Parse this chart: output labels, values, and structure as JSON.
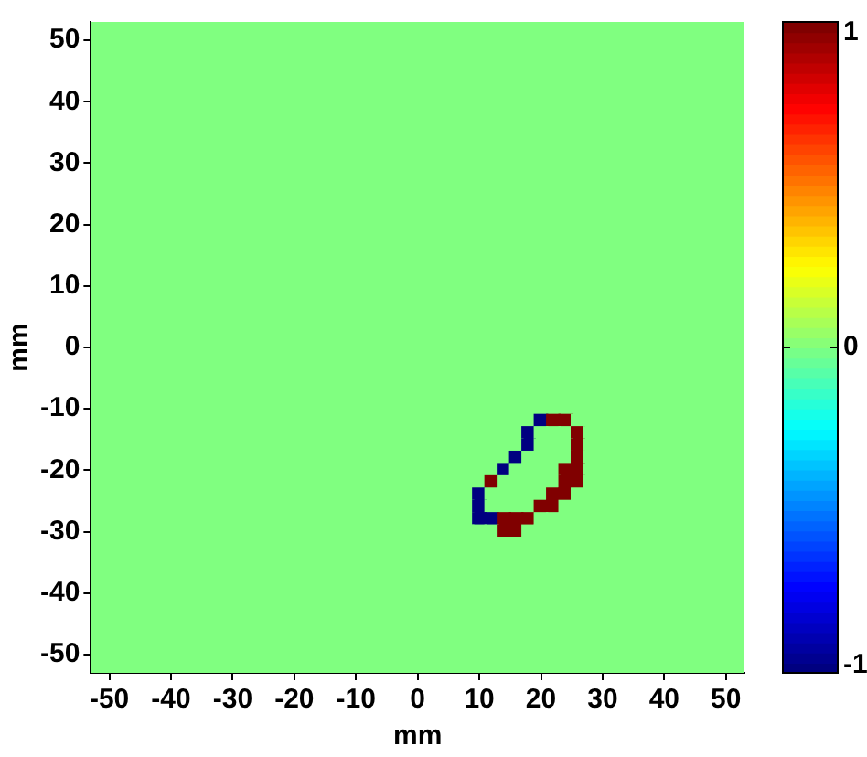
{
  "chart_data": {
    "type": "heatmap",
    "xlabel": "mm",
    "ylabel": "mm",
    "xlim": [
      -53,
      53
    ],
    "ylim": [
      -53,
      53
    ],
    "xticks": [
      -50,
      -40,
      -30,
      -20,
      -10,
      0,
      10,
      20,
      30,
      40,
      50
    ],
    "yticks": [
      -50,
      -40,
      -30,
      -20,
      -10,
      0,
      10,
      20,
      30,
      40,
      50
    ],
    "clim": [
      -1,
      1
    ],
    "cticks": [
      -1,
      0,
      1
    ],
    "cells": [
      [
        0,
        0,
        0,
        0,
        0,
        0,
        0,
        0,
        0,
        0,
        0,
        0,
        0,
        0,
        0,
        0,
        0,
        0,
        0,
        0,
        0,
        0,
        0,
        0,
        0,
        0,
        0,
        0,
        0,
        0,
        0,
        0,
        0,
        0,
        0,
        0,
        0,
        0,
        0,
        0,
        0,
        0,
        0,
        0,
        0,
        0,
        0,
        0,
        0,
        0,
        0,
        0,
        0
      ],
      [
        0,
        0,
        0,
        0,
        0,
        0,
        0,
        0,
        0,
        0,
        0,
        0,
        0,
        0,
        0,
        0,
        0,
        0,
        0,
        0,
        0,
        0,
        0,
        0,
        0,
        0,
        0,
        0,
        0,
        0,
        0,
        0,
        0,
        0,
        0,
        0,
        0,
        0,
        0,
        0,
        0,
        0,
        0,
        0,
        0,
        0,
        0,
        0,
        0,
        0,
        0,
        0,
        0
      ],
      [
        0,
        0,
        0,
        0,
        0,
        0,
        0,
        0,
        0,
        0,
        0,
        0,
        0,
        0,
        0,
        0,
        0,
        0,
        0,
        0,
        0,
        0,
        0,
        0,
        0,
        0,
        0,
        0,
        0,
        0,
        0,
        0,
        0,
        0,
        0,
        0,
        0,
        0,
        0,
        0,
        0,
        0,
        0,
        0,
        0,
        0,
        0,
        0,
        0,
        0,
        0,
        0,
        0
      ],
      [
        0,
        0,
        0,
        0,
        0,
        0,
        0,
        0,
        0,
        0,
        0,
        0,
        0,
        0,
        0,
        0,
        0,
        0,
        0,
        0,
        0,
        0,
        0,
        0,
        0,
        0,
        0,
        0,
        0,
        0,
        0,
        0,
        0,
        0,
        0,
        0,
        0,
        0,
        0,
        0,
        0,
        0,
        0,
        0,
        0,
        0,
        0,
        0,
        0,
        0,
        0,
        0,
        0
      ],
      [
        0,
        0,
        0,
        0,
        0,
        0,
        0,
        0,
        0,
        0,
        0,
        0,
        0,
        0,
        0,
        0,
        0,
        0,
        0,
        0,
        0,
        0,
        0,
        0,
        0,
        0,
        0,
        0,
        0,
        0,
        0,
        0,
        0,
        0,
        0,
        0,
        0,
        0,
        0,
        0,
        0,
        0,
        0,
        0,
        0,
        0,
        0,
        0,
        0,
        0,
        0,
        0,
        0
      ],
      [
        0,
        0,
        0,
        0,
        0,
        0,
        0,
        0,
        0,
        0,
        0,
        0,
        0,
        0,
        0,
        0,
        0,
        0,
        0,
        0,
        0,
        0,
        0,
        0,
        0,
        0,
        0,
        0,
        0,
        0,
        0,
        0,
        0,
        0,
        0,
        0,
        0,
        0,
        0,
        0,
        0,
        0,
        0,
        0,
        0,
        0,
        0,
        0,
        0,
        0,
        0,
        0,
        0
      ],
      [
        0,
        0,
        0,
        0,
        0,
        0,
        0,
        0,
        0,
        0,
        0,
        0,
        0,
        0,
        0,
        0,
        0,
        0,
        0,
        0,
        0,
        0,
        0,
        0,
        0,
        0,
        0,
        0,
        0,
        0,
        0,
        0,
        0,
        0,
        0,
        0,
        0,
        0,
        0,
        0,
        0,
        0,
        0,
        0,
        0,
        0,
        0,
        0,
        0,
        0,
        0,
        0,
        0
      ],
      [
        0,
        0,
        0,
        0,
        0,
        0,
        0,
        0,
        0,
        0,
        0,
        0,
        0,
        0,
        0,
        0,
        0,
        0,
        0,
        0,
        0,
        0,
        0,
        0,
        0,
        0,
        0,
        0,
        0,
        0,
        0,
        0,
        0,
        0,
        0,
        0,
        0,
        0,
        0,
        0,
        0,
        0,
        0,
        0,
        0,
        0,
        0,
        0,
        0,
        0,
        0,
        0,
        0
      ],
      [
        0,
        0,
        0,
        0,
        0,
        0,
        0,
        0,
        0,
        0,
        0,
        0,
        0,
        0,
        0,
        0,
        0,
        0,
        0,
        0,
        0,
        0,
        0,
        0,
        0,
        0,
        0,
        0,
        0,
        0,
        0,
        0,
        0,
        0,
        0,
        0,
        0,
        0,
        0,
        0,
        0,
        0,
        0,
        0,
        0,
        0,
        0,
        0,
        0,
        0,
        0,
        0,
        0
      ],
      [
        0,
        0,
        0,
        0,
        0,
        0,
        0,
        0,
        0,
        0,
        0,
        0,
        0,
        0,
        0,
        0,
        0,
        0,
        0,
        0,
        0,
        0,
        0,
        0,
        0,
        0,
        0,
        0,
        0,
        0,
        0,
        0,
        0,
        0,
        0,
        0,
        0,
        0,
        0,
        0,
        0,
        0,
        0,
        0,
        0,
        0,
        0,
        0,
        0,
        0,
        0,
        0,
        0
      ],
      [
        0,
        0,
        0,
        0,
        0,
        0,
        0,
        0,
        0,
        0,
        0,
        0,
        0,
        0,
        0,
        0,
        0,
        0,
        0,
        0,
        0,
        0,
        0,
        0,
        0,
        0,
        0,
        0,
        0,
        0,
        0,
        0,
        0,
        0,
        0,
        0,
        0,
        0,
        0,
        0,
        0,
        0,
        0,
        0,
        0,
        0,
        0,
        0,
        0,
        0,
        0,
        0,
        0
      ],
      [
        0,
        0,
        0,
        0,
        0,
        0,
        0,
        0,
        0,
        0,
        0,
        0,
        0,
        0,
        0,
        0,
        0,
        0,
        0,
        0,
        0,
        0,
        0,
        0,
        0,
        0,
        0,
        0,
        0,
        0,
        0,
        0,
        0,
        0,
        0,
        0,
        0,
        0,
        0,
        0,
        0,
        0,
        0,
        0,
        0,
        0,
        0,
        0,
        0,
        0,
        0,
        0,
        0
      ],
      [
        0,
        0,
        0,
        0,
        0,
        0,
        0,
        0,
        0,
        0,
        0,
        0,
        0,
        0,
        0,
        0,
        0,
        0,
        0,
        0,
        0,
        0,
        0,
        0,
        0,
        0,
        0,
        0,
        0,
        0,
        0,
        0,
        0,
        0,
        0,
        0,
        0,
        0,
        0,
        0,
        0,
        0,
        0,
        0,
        0,
        0,
        0,
        0,
        0,
        0,
        0,
        0,
        0
      ],
      [
        0,
        0,
        0,
        0,
        0,
        0,
        0,
        0,
        0,
        0,
        0,
        0,
        0,
        0,
        0,
        0,
        0,
        0,
        0,
        0,
        0,
        0,
        0,
        0,
        0,
        0,
        0,
        0,
        0,
        0,
        0,
        0,
        0,
        0,
        0,
        0,
        0,
        0,
        0,
        0,
        0,
        0,
        0,
        0,
        0,
        0,
        0,
        0,
        0,
        0,
        0,
        0,
        0
      ],
      [
        0,
        0,
        0,
        0,
        0,
        0,
        0,
        0,
        0,
        0,
        0,
        0,
        0,
        0,
        0,
        0,
        0,
        0,
        0,
        0,
        0,
        0,
        0,
        0,
        0,
        0,
        0,
        0,
        0,
        0,
        0,
        0,
        0,
        0,
        0,
        0,
        0,
        0,
        0,
        0,
        0,
        0,
        0,
        0,
        0,
        0,
        0,
        0,
        0,
        0,
        0,
        0,
        0
      ],
      [
        0,
        0,
        0,
        0,
        0,
        0,
        0,
        0,
        0,
        0,
        0,
        0,
        0,
        0,
        0,
        0,
        0,
        0,
        0,
        0,
        0,
        0,
        0,
        0,
        0,
        0,
        0,
        0,
        0,
        0,
        0,
        0,
        0,
        0,
        0,
        0,
        0,
        0,
        0,
        0,
        0,
        0,
        0,
        0,
        0,
        0,
        0,
        0,
        0,
        0,
        0,
        0,
        0
      ],
      [
        0,
        0,
        0,
        0,
        0,
        0,
        0,
        0,
        0,
        0,
        0,
        0,
        0,
        0,
        0,
        0,
        0,
        0,
        0,
        0,
        0,
        0,
        0,
        0,
        0,
        0,
        0,
        0,
        0,
        0,
        0,
        0,
        0,
        0,
        0,
        0,
        0,
        0,
        0,
        0,
        0,
        0,
        0,
        0,
        0,
        0,
        0,
        0,
        0,
        0,
        0,
        0,
        0
      ],
      [
        0,
        0,
        0,
        0,
        0,
        0,
        0,
        0,
        0,
        0,
        0,
        0,
        0,
        0,
        0,
        0,
        0,
        0,
        0,
        0,
        0,
        0,
        0,
        0,
        0,
        0,
        0,
        0,
        0,
        0,
        0,
        0,
        0,
        0,
        0,
        0,
        0,
        0,
        0,
        0,
        0,
        0,
        0,
        0,
        0,
        0,
        0,
        0,
        0,
        0,
        0,
        0,
        0
      ],
      [
        0,
        0,
        0,
        0,
        0,
        0,
        0,
        0,
        0,
        0,
        0,
        0,
        0,
        0,
        0,
        0,
        0,
        0,
        0,
        0,
        0,
        0,
        0,
        0,
        0,
        0,
        0,
        0,
        0,
        0,
        0,
        0,
        0,
        0,
        0,
        0,
        0,
        0,
        0,
        0,
        0,
        0,
        0,
        0,
        0,
        0,
        0,
        0,
        0,
        0,
        0,
        0,
        0
      ],
      [
        0,
        0,
        0,
        0,
        0,
        0,
        0,
        0,
        0,
        0,
        0,
        0,
        0,
        0,
        0,
        0,
        0,
        0,
        0,
        0,
        0,
        0,
        0,
        0,
        0,
        0,
        0,
        0,
        0,
        0,
        0,
        0,
        0,
        0,
        0,
        0,
        0,
        0,
        0,
        0,
        0,
        0,
        0,
        0,
        0,
        0,
        0,
        0,
        0,
        0,
        0,
        0,
        0
      ],
      [
        0,
        0,
        0,
        0,
        0,
        0,
        0,
        0,
        0,
        0,
        0,
        0,
        0,
        0,
        0,
        0,
        0,
        0,
        0,
        0,
        0,
        0,
        0,
        0,
        0,
        0,
        0,
        0,
        0,
        0,
        0,
        0,
        0,
        0,
        0,
        0,
        0,
        0,
        0,
        0,
        0,
        0,
        0,
        0,
        0,
        0,
        0,
        0,
        0,
        0,
        0,
        0,
        0
      ],
      [
        0,
        0,
        0,
        0,
        0,
        0,
        0,
        0,
        0,
        0,
        0,
        0,
        0,
        0,
        0,
        0,
        0,
        0,
        0,
        0,
        0,
        0,
        0,
        0,
        0,
        0,
        0,
        0,
        0,
        0,
        0,
        0,
        0,
        0,
        0,
        0,
        0,
        0,
        0,
        0,
        0,
        0,
        0,
        0,
        0,
        0,
        0,
        0,
        0,
        0,
        0,
        0,
        0
      ],
      [
        0,
        0,
        0,
        0,
        0,
        0,
        0,
        0,
        0,
        0,
        0,
        0,
        0,
        0,
        0,
        0,
        0,
        0,
        0,
        0,
        0,
        0,
        0,
        0,
        0,
        0,
        0,
        0,
        0,
        0,
        0,
        0,
        0,
        0,
        0,
        0,
        0,
        0,
        0,
        0,
        0,
        0,
        0,
        0,
        0,
        0,
        0,
        0,
        0,
        0,
        0,
        0,
        0
      ],
      [
        0,
        0,
        0,
        0,
        0,
        0,
        0,
        0,
        0,
        0,
        0,
        0,
        0,
        0,
        0,
        0,
        0,
        0,
        0,
        0,
        0,
        0,
        0,
        0,
        0,
        0,
        0,
        0,
        0,
        0,
        0,
        0,
        0,
        0,
        0,
        0,
        0,
        0,
        0,
        0,
        0,
        0,
        0,
        0,
        0,
        0,
        0,
        0,
        0,
        0,
        0,
        0,
        0
      ],
      [
        0,
        0,
        0,
        0,
        0,
        0,
        0,
        0,
        0,
        0,
        0,
        0,
        0,
        0,
        0,
        0,
        0,
        0,
        0,
        0,
        0,
        0,
        0,
        0,
        0,
        0,
        0,
        0,
        0,
        0,
        0,
        0,
        0,
        0,
        0,
        0,
        0,
        0,
        0,
        0,
        0,
        0,
        0,
        0,
        0,
        0,
        0,
        0,
        0,
        0,
        0,
        0,
        0
      ],
      [
        0,
        0,
        0,
        0,
        0,
        0,
        0,
        0,
        0,
        0,
        0,
        0,
        0,
        0,
        0,
        0,
        0,
        0,
        0,
        0,
        0,
        0,
        0,
        0,
        0,
        0,
        0,
        0,
        0,
        0,
        0,
        0,
        0,
        0,
        0,
        0,
        0,
        0,
        0,
        0,
        0,
        0,
        0,
        0,
        0,
        0,
        0,
        0,
        0,
        0,
        0,
        0,
        0
      ],
      [
        0,
        0,
        0,
        0,
        0,
        0,
        0,
        0,
        0,
        0,
        0,
        0,
        0,
        0,
        0,
        0,
        0,
        0,
        0,
        0,
        0,
        0,
        0,
        0,
        0,
        0,
        0,
        0,
        0,
        0,
        0,
        0,
        0,
        0,
        0,
        0,
        0,
        0,
        0,
        0,
        0,
        0,
        0,
        0,
        0,
        0,
        0,
        0,
        0,
        0,
        0,
        0,
        0
      ],
      [
        0,
        0,
        0,
        0,
        0,
        0,
        0,
        0,
        0,
        0,
        0,
        0,
        0,
        0,
        0,
        0,
        0,
        0,
        0,
        0,
        0,
        0,
        0,
        0,
        0,
        0,
        0,
        0,
        0,
        0,
        0,
        0,
        0,
        0,
        0,
        0,
        0,
        0,
        0,
        0,
        0,
        0,
        0,
        0,
        0,
        0,
        0,
        0,
        0,
        0,
        0,
        0,
        0
      ],
      [
        0,
        0,
        0,
        0,
        0,
        0,
        0,
        0,
        0,
        0,
        0,
        0,
        0,
        0,
        0,
        0,
        0,
        0,
        0,
        0,
        0,
        0,
        0,
        0,
        0,
        0,
        0,
        0,
        0,
        0,
        0,
        0,
        0,
        0,
        0,
        0,
        0,
        0,
        0,
        0,
        0,
        0,
        0,
        0,
        0,
        0,
        0,
        0,
        0,
        0,
        0,
        0,
        0
      ],
      [
        0,
        0,
        0,
        0,
        0,
        0,
        0,
        0,
        0,
        0,
        0,
        0,
        0,
        0,
        0,
        0,
        0,
        0,
        0,
        0,
        0,
        0,
        0,
        0,
        0,
        0,
        0,
        0,
        0,
        0,
        0,
        0,
        0,
        0,
        0,
        0,
        0,
        0,
        0,
        0,
        0,
        0,
        0,
        0,
        0,
        0,
        0,
        0,
        0,
        0,
        0,
        0,
        0
      ],
      [
        0,
        0,
        0,
        0,
        0,
        0,
        0,
        0,
        0,
        0,
        0,
        0,
        0,
        0,
        0,
        0,
        0,
        0,
        0,
        0,
        0,
        0,
        0,
        0,
        0,
        0,
        0,
        0,
        0,
        0,
        0,
        0,
        0,
        0,
        0,
        0,
        0,
        0,
        0,
        0,
        0,
        0,
        0,
        0,
        0,
        0,
        0,
        0,
        0,
        0,
        0,
        0,
        0
      ],
      [
        0,
        0,
        0,
        0,
        0,
        0,
        0,
        0,
        0,
        0,
        0,
        0,
        0,
        0,
        0,
        0,
        0,
        0,
        0,
        0,
        0,
        0,
        0,
        0,
        0,
        0,
        0,
        0,
        0,
        0,
        0,
        0,
        0,
        0,
        0,
        0,
        0,
        0,
        0,
        0,
        0,
        0,
        0,
        0,
        0,
        0,
        0,
        0,
        0,
        0,
        0,
        0,
        0
      ],
      [
        0,
        0,
        0,
        0,
        0,
        0,
        0,
        0,
        0,
        0,
        0,
        0,
        0,
        0,
        0,
        0,
        0,
        0,
        0,
        0,
        0,
        0,
        0,
        0,
        0,
        0,
        0,
        0,
        0,
        0,
        0,
        0,
        0,
        0,
        0,
        0,
        -1,
        1,
        1,
        0,
        0,
        0,
        0,
        0,
        0,
        0,
        0,
        0,
        0,
        0,
        0,
        0,
        0
      ],
      [
        0,
        0,
        0,
        0,
        0,
        0,
        0,
        0,
        0,
        0,
        0,
        0,
        0,
        0,
        0,
        0,
        0,
        0,
        0,
        0,
        0,
        0,
        0,
        0,
        0,
        0,
        0,
        0,
        0,
        0,
        0,
        0,
        0,
        0,
        0,
        -1,
        0,
        0,
        0,
        1,
        0,
        0,
        0,
        0,
        0,
        0,
        0,
        0,
        0,
        0,
        0,
        0,
        0
      ],
      [
        0,
        0,
        0,
        0,
        0,
        0,
        0,
        0,
        0,
        0,
        0,
        0,
        0,
        0,
        0,
        0,
        0,
        0,
        0,
        0,
        0,
        0,
        0,
        0,
        0,
        0,
        0,
        0,
        0,
        0,
        0,
        0,
        0,
        0,
        0,
        -1,
        0,
        0,
        0,
        1,
        0,
        0,
        0,
        0,
        0,
        0,
        0,
        0,
        0,
        0,
        0,
        0,
        0
      ],
      [
        0,
        0,
        0,
        0,
        0,
        0,
        0,
        0,
        0,
        0,
        0,
        0,
        0,
        0,
        0,
        0,
        0,
        0,
        0,
        0,
        0,
        0,
        0,
        0,
        0,
        0,
        0,
        0,
        0,
        0,
        0,
        0,
        0,
        0,
        -1,
        0,
        0,
        0,
        0,
        1,
        0,
        0,
        0,
        0,
        0,
        0,
        0,
        0,
        0,
        0,
        0,
        0,
        0
      ],
      [
        0,
        0,
        0,
        0,
        0,
        0,
        0,
        0,
        0,
        0,
        0,
        0,
        0,
        0,
        0,
        0,
        0,
        0,
        0,
        0,
        0,
        0,
        0,
        0,
        0,
        0,
        0,
        0,
        0,
        0,
        0,
        0,
        0,
        -1,
        0,
        0,
        0,
        0,
        1,
        1,
        0,
        0,
        0,
        0,
        0,
        0,
        0,
        0,
        0,
        0,
        0,
        0,
        0
      ],
      [
        0,
        0,
        0,
        0,
        0,
        0,
        0,
        0,
        0,
        0,
        0,
        0,
        0,
        0,
        0,
        0,
        0,
        0,
        0,
        0,
        0,
        0,
        0,
        0,
        0,
        0,
        0,
        0,
        0,
        0,
        0,
        0,
        1,
        0,
        0,
        0,
        0,
        0,
        1,
        1,
        0,
        0,
        0,
        0,
        0,
        0,
        0,
        0,
        0,
        0,
        0,
        0,
        0
      ],
      [
        0,
        0,
        0,
        0,
        0,
        0,
        0,
        0,
        0,
        0,
        0,
        0,
        0,
        0,
        0,
        0,
        0,
        0,
        0,
        0,
        0,
        0,
        0,
        0,
        0,
        0,
        0,
        0,
        0,
        0,
        0,
        -1,
        0,
        0,
        0,
        0,
        0,
        1,
        1,
        0,
        0,
        0,
        0,
        0,
        0,
        0,
        0,
        0,
        0,
        0,
        0,
        0,
        0
      ],
      [
        0,
        0,
        0,
        0,
        0,
        0,
        0,
        0,
        0,
        0,
        0,
        0,
        0,
        0,
        0,
        0,
        0,
        0,
        0,
        0,
        0,
        0,
        0,
        0,
        0,
        0,
        0,
        0,
        0,
        0,
        0,
        -1,
        0,
        0,
        0,
        0,
        1,
        1,
        0,
        0,
        0,
        0,
        0,
        0,
        0,
        0,
        0,
        0,
        0,
        0,
        0,
        0,
        0
      ],
      [
        0,
        0,
        0,
        0,
        0,
        0,
        0,
        0,
        0,
        0,
        0,
        0,
        0,
        0,
        0,
        0,
        0,
        0,
        0,
        0,
        0,
        0,
        0,
        0,
        0,
        0,
        0,
        0,
        0,
        0,
        0,
        -1,
        -1,
        1,
        1,
        1,
        0,
        0,
        0,
        0,
        0,
        0,
        0,
        0,
        0,
        0,
        0,
        0,
        0,
        0,
        0,
        0,
        0
      ],
      [
        0,
        0,
        0,
        0,
        0,
        0,
        0,
        0,
        0,
        0,
        0,
        0,
        0,
        0,
        0,
        0,
        0,
        0,
        0,
        0,
        0,
        0,
        0,
        0,
        0,
        0,
        0,
        0,
        0,
        0,
        0,
        0,
        0,
        1,
        1,
        0,
        0,
        0,
        0,
        0,
        0,
        0,
        0,
        0,
        0,
        0,
        0,
        0,
        0,
        0,
        0,
        0,
        0
      ],
      [
        0,
        0,
        0,
        0,
        0,
        0,
        0,
        0,
        0,
        0,
        0,
        0,
        0,
        0,
        0,
        0,
        0,
        0,
        0,
        0,
        0,
        0,
        0,
        0,
        0,
        0,
        0,
        0,
        0,
        0,
        0,
        0,
        0,
        0,
        0,
        0,
        0,
        0,
        0,
        0,
        0,
        0,
        0,
        0,
        0,
        0,
        0,
        0,
        0,
        0,
        0,
        0,
        0
      ],
      [
        0,
        0,
        0,
        0,
        0,
        0,
        0,
        0,
        0,
        0,
        0,
        0,
        0,
        0,
        0,
        0,
        0,
        0,
        0,
        0,
        0,
        0,
        0,
        0,
        0,
        0,
        0,
        0,
        0,
        0,
        0,
        0,
        0,
        0,
        0,
        0,
        0,
        0,
        0,
        0,
        0,
        0,
        0,
        0,
        0,
        0,
        0,
        0,
        0,
        0,
        0,
        0,
        0
      ],
      [
        0,
        0,
        0,
        0,
        0,
        0,
        0,
        0,
        0,
        0,
        0,
        0,
        0,
        0,
        0,
        0,
        0,
        0,
        0,
        0,
        0,
        0,
        0,
        0,
        0,
        0,
        0,
        0,
        0,
        0,
        0,
        0,
        0,
        0,
        0,
        0,
        0,
        0,
        0,
        0,
        0,
        0,
        0,
        0,
        0,
        0,
        0,
        0,
        0,
        0,
        0,
        0,
        0
      ],
      [
        0,
        0,
        0,
        0,
        0,
        0,
        0,
        0,
        0,
        0,
        0,
        0,
        0,
        0,
        0,
        0,
        0,
        0,
        0,
        0,
        0,
        0,
        0,
        0,
        0,
        0,
        0,
        0,
        0,
        0,
        0,
        0,
        0,
        0,
        0,
        0,
        0,
        0,
        0,
        0,
        0,
        0,
        0,
        0,
        0,
        0,
        0,
        0,
        0,
        0,
        0,
        0,
        0
      ],
      [
        0,
        0,
        0,
        0,
        0,
        0,
        0,
        0,
        0,
        0,
        0,
        0,
        0,
        0,
        0,
        0,
        0,
        0,
        0,
        0,
        0,
        0,
        0,
        0,
        0,
        0,
        0,
        0,
        0,
        0,
        0,
        0,
        0,
        0,
        0,
        0,
        0,
        0,
        0,
        0,
        0,
        0,
        0,
        0,
        0,
        0,
        0,
        0,
        0,
        0,
        0,
        0,
        0
      ],
      [
        0,
        0,
        0,
        0,
        0,
        0,
        0,
        0,
        0,
        0,
        0,
        0,
        0,
        0,
        0,
        0,
        0,
        0,
        0,
        0,
        0,
        0,
        0,
        0,
        0,
        0,
        0,
        0,
        0,
        0,
        0,
        0,
        0,
        0,
        0,
        0,
        0,
        0,
        0,
        0,
        0,
        0,
        0,
        0,
        0,
        0,
        0,
        0,
        0,
        0,
        0,
        0,
        0
      ],
      [
        0,
        0,
        0,
        0,
        0,
        0,
        0,
        0,
        0,
        0,
        0,
        0,
        0,
        0,
        0,
        0,
        0,
        0,
        0,
        0,
        0,
        0,
        0,
        0,
        0,
        0,
        0,
        0,
        0,
        0,
        0,
        0,
        0,
        0,
        0,
        0,
        0,
        0,
        0,
        0,
        0,
        0,
        0,
        0,
        0,
        0,
        0,
        0,
        0,
        0,
        0,
        0,
        0
      ],
      [
        0,
        0,
        0,
        0,
        0,
        0,
        0,
        0,
        0,
        0,
        0,
        0,
        0,
        0,
        0,
        0,
        0,
        0,
        0,
        0,
        0,
        0,
        0,
        0,
        0,
        0,
        0,
        0,
        0,
        0,
        0,
        0,
        0,
        0,
        0,
        0,
        0,
        0,
        0,
        0,
        0,
        0,
        0,
        0,
        0,
        0,
        0,
        0,
        0,
        0,
        0,
        0,
        0
      ],
      [
        0,
        0,
        0,
        0,
        0,
        0,
        0,
        0,
        0,
        0,
        0,
        0,
        0,
        0,
        0,
        0,
        0,
        0,
        0,
        0,
        0,
        0,
        0,
        0,
        0,
        0,
        0,
        0,
        0,
        0,
        0,
        0,
        0,
        0,
        0,
        0,
        0,
        0,
        0,
        0,
        0,
        0,
        0,
        0,
        0,
        0,
        0,
        0,
        0,
        0,
        0,
        0,
        0
      ],
      [
        0,
        0,
        0,
        0,
        0,
        0,
        0,
        0,
        0,
        0,
        0,
        0,
        0,
        0,
        0,
        0,
        0,
        0,
        0,
        0,
        0,
        0,
        0,
        0,
        0,
        0,
        0,
        0,
        0,
        0,
        0,
        0,
        0,
        0,
        0,
        0,
        0,
        0,
        0,
        0,
        0,
        0,
        0,
        0,
        0,
        0,
        0,
        0,
        0,
        0,
        0,
        0,
        0
      ],
      [
        0,
        0,
        0,
        0,
        0,
        0,
        0,
        0,
        0,
        0,
        0,
        0,
        0,
        0,
        0,
        0,
        0,
        0,
        0,
        0,
        0,
        0,
        0,
        0,
        0,
        0,
        0,
        0,
        0,
        0,
        0,
        0,
        0,
        0,
        0,
        0,
        0,
        0,
        0,
        0,
        0,
        0,
        0,
        0,
        0,
        0,
        0,
        0,
        0,
        0,
        0,
        0,
        0
      ]
    ]
  }
}
